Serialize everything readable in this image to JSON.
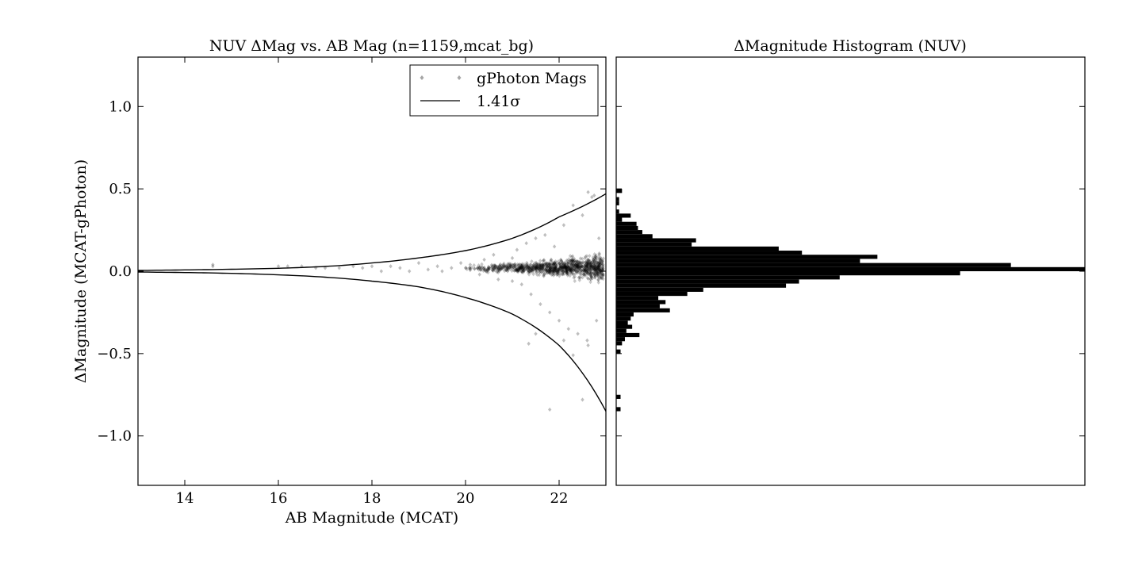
{
  "chart_data": [
    {
      "type": "scatter",
      "title": "NUV ΔMag vs. AB Mag (n=1159,mcat_bg)",
      "xlabel": "AB Magnitude (MCAT)",
      "ylabel": "ΔMagnitude (MCAT-gPhoton)",
      "xlim": [
        13,
        23
      ],
      "ylim": [
        -1.3,
        1.3
      ],
      "xticks": [
        {
          "value": 14,
          "label": "14"
        },
        {
          "value": 16,
          "label": "16"
        },
        {
          "value": 18,
          "label": "18"
        },
        {
          "value": 20,
          "label": "20"
        },
        {
          "value": 22,
          "label": "22"
        }
      ],
      "yticks": [
        {
          "value": 1.0,
          "label": "1.0"
        },
        {
          "value": 0.5,
          "label": "0.5"
        },
        {
          "value": 0.0,
          "label": "0.0"
        },
        {
          "value": -0.5,
          "label": "−0.5"
        },
        {
          "value": -1.0,
          "label": "−1.0"
        }
      ],
      "grid": false,
      "legend": {
        "placement": "top-right",
        "entries": [
          {
            "label": "gPhoton Mags",
            "marker": "diamond"
          },
          {
            "label": "1.41σ",
            "marker": "line"
          }
        ]
      },
      "series": [
        {
          "name": "gPhoton Mags",
          "kind": "scatter",
          "color": "#000000",
          "alpha": 0.25,
          "points": [
            [
              14.6,
              0.03
            ],
            [
              14.6,
              0.04
            ],
            [
              16.0,
              0.03
            ],
            [
              16.2,
              0.03
            ],
            [
              16.5,
              0.03
            ],
            [
              16.8,
              0.02
            ],
            [
              17.0,
              0.02
            ],
            [
              17.3,
              0.02
            ],
            [
              17.6,
              0.03
            ],
            [
              17.8,
              0.02
            ],
            [
              18.0,
              0.03
            ],
            [
              18.2,
              0.0
            ],
            [
              18.4,
              0.03
            ],
            [
              18.6,
              0.02
            ],
            [
              18.8,
              0.0
            ],
            [
              19.0,
              0.05
            ],
            [
              19.2,
              0.01
            ],
            [
              19.4,
              0.03
            ],
            [
              19.5,
              0.0
            ],
            [
              19.7,
              0.02
            ],
            [
              19.9,
              0.05
            ],
            [
              20.0,
              0.02
            ],
            [
              20.1,
              0.04
            ],
            [
              20.3,
              -0.02
            ],
            [
              20.4,
              0.07
            ],
            [
              20.5,
              0.01
            ],
            [
              20.6,
              0.1
            ],
            [
              20.7,
              -0.05
            ],
            [
              20.8,
              0.03
            ],
            [
              20.9,
              0.0
            ],
            [
              21.0,
              0.08
            ],
            [
              21.0,
              -0.06
            ],
            [
              21.1,
              0.13
            ],
            [
              21.2,
              -0.08
            ],
            [
              21.3,
              0.17
            ],
            [
              21.4,
              -0.14
            ],
            [
              21.5,
              0.2
            ],
            [
              21.6,
              -0.2
            ],
            [
              21.7,
              0.22
            ],
            [
              21.8,
              -0.25
            ],
            [
              21.9,
              0.15
            ],
            [
              22.0,
              -0.3
            ],
            [
              22.1,
              0.28
            ],
            [
              22.2,
              -0.35
            ],
            [
              22.3,
              0.4
            ],
            [
              22.4,
              -0.38
            ],
            [
              22.5,
              0.34
            ],
            [
              22.6,
              -0.42
            ],
            [
              22.7,
              0.45
            ],
            [
              22.8,
              -0.3
            ],
            [
              21.35,
              -0.44
            ],
            [
              21.5,
              -0.38
            ],
            [
              21.8,
              -0.84
            ],
            [
              22.1,
              -0.42
            ],
            [
              22.3,
              -0.51
            ],
            [
              22.5,
              -0.78
            ],
            [
              22.62,
              -0.45
            ],
            [
              22.62,
              0.48
            ],
            [
              22.75,
              0.46
            ],
            [
              22.85,
              0.2
            ]
          ]
        },
        {
          "name": "1.41σ",
          "kind": "envelope",
          "color": "#000000",
          "upper": [
            [
              13,
              0.005
            ],
            [
              14,
              0.008
            ],
            [
              15,
              0.012
            ],
            [
              16,
              0.018
            ],
            [
              17,
              0.029
            ],
            [
              18,
              0.05
            ],
            [
              19,
              0.081
            ],
            [
              20,
              0.125
            ],
            [
              21,
              0.2
            ],
            [
              22,
              0.33
            ],
            [
              23,
              0.47
            ]
          ],
          "lower": [
            [
              13,
              -0.005
            ],
            [
              14,
              -0.008
            ],
            [
              15,
              -0.013
            ],
            [
              16,
              -0.022
            ],
            [
              17,
              -0.036
            ],
            [
              18,
              -0.06
            ],
            [
              19,
              -0.095
            ],
            [
              20,
              -0.16
            ],
            [
              21,
              -0.26
            ],
            [
              22,
              -0.45
            ],
            [
              23,
              -0.85
            ]
          ]
        }
      ]
    },
    {
      "type": "bar",
      "orientation": "horizontal",
      "title": "ΔMagnitude Histogram (NUV)",
      "ylim": [
        -1.3,
        1.3
      ],
      "bin_width": 0.025,
      "bins": [
        {
          "y": 0.475,
          "count": 4
        },
        {
          "y": 0.425,
          "count": 2
        },
        {
          "y": 0.4,
          "count": 2
        },
        {
          "y": 0.35,
          "count": 2
        },
        {
          "y": 0.325,
          "count": 10
        },
        {
          "y": 0.3,
          "count": 4
        },
        {
          "y": 0.275,
          "count": 14
        },
        {
          "y": 0.25,
          "count": 15
        },
        {
          "y": 0.225,
          "count": 18
        },
        {
          "y": 0.2,
          "count": 25
        },
        {
          "y": 0.175,
          "count": 55
        },
        {
          "y": 0.15,
          "count": 52
        },
        {
          "y": 0.125,
          "count": 112
        },
        {
          "y": 0.1,
          "count": 128
        },
        {
          "y": 0.075,
          "count": 180
        },
        {
          "y": 0.05,
          "count": 168
        },
        {
          "y": 0.025,
          "count": 272
        },
        {
          "y": 0.0,
          "count": 323
        },
        {
          "y": -0.025,
          "count": 237
        },
        {
          "y": -0.05,
          "count": 154
        },
        {
          "y": -0.075,
          "count": 126
        },
        {
          "y": -0.1,
          "count": 117
        },
        {
          "y": -0.125,
          "count": 60
        },
        {
          "y": -0.15,
          "count": 49
        },
        {
          "y": -0.175,
          "count": 29
        },
        {
          "y": -0.2,
          "count": 34
        },
        {
          "y": -0.225,
          "count": 30
        },
        {
          "y": -0.25,
          "count": 37
        },
        {
          "y": -0.275,
          "count": 12
        },
        {
          "y": -0.3,
          "count": 10
        },
        {
          "y": -0.325,
          "count": 8
        },
        {
          "y": -0.35,
          "count": 11
        },
        {
          "y": -0.375,
          "count": 7
        },
        {
          "y": -0.4,
          "count": 16
        },
        {
          "y": -0.425,
          "count": 6
        },
        {
          "y": -0.45,
          "count": 4
        },
        {
          "y": -0.5,
          "count": 3
        },
        {
          "y": -0.775,
          "count": 3
        },
        {
          "y": -0.85,
          "count": 3
        }
      ],
      "count_max": 323
    }
  ]
}
